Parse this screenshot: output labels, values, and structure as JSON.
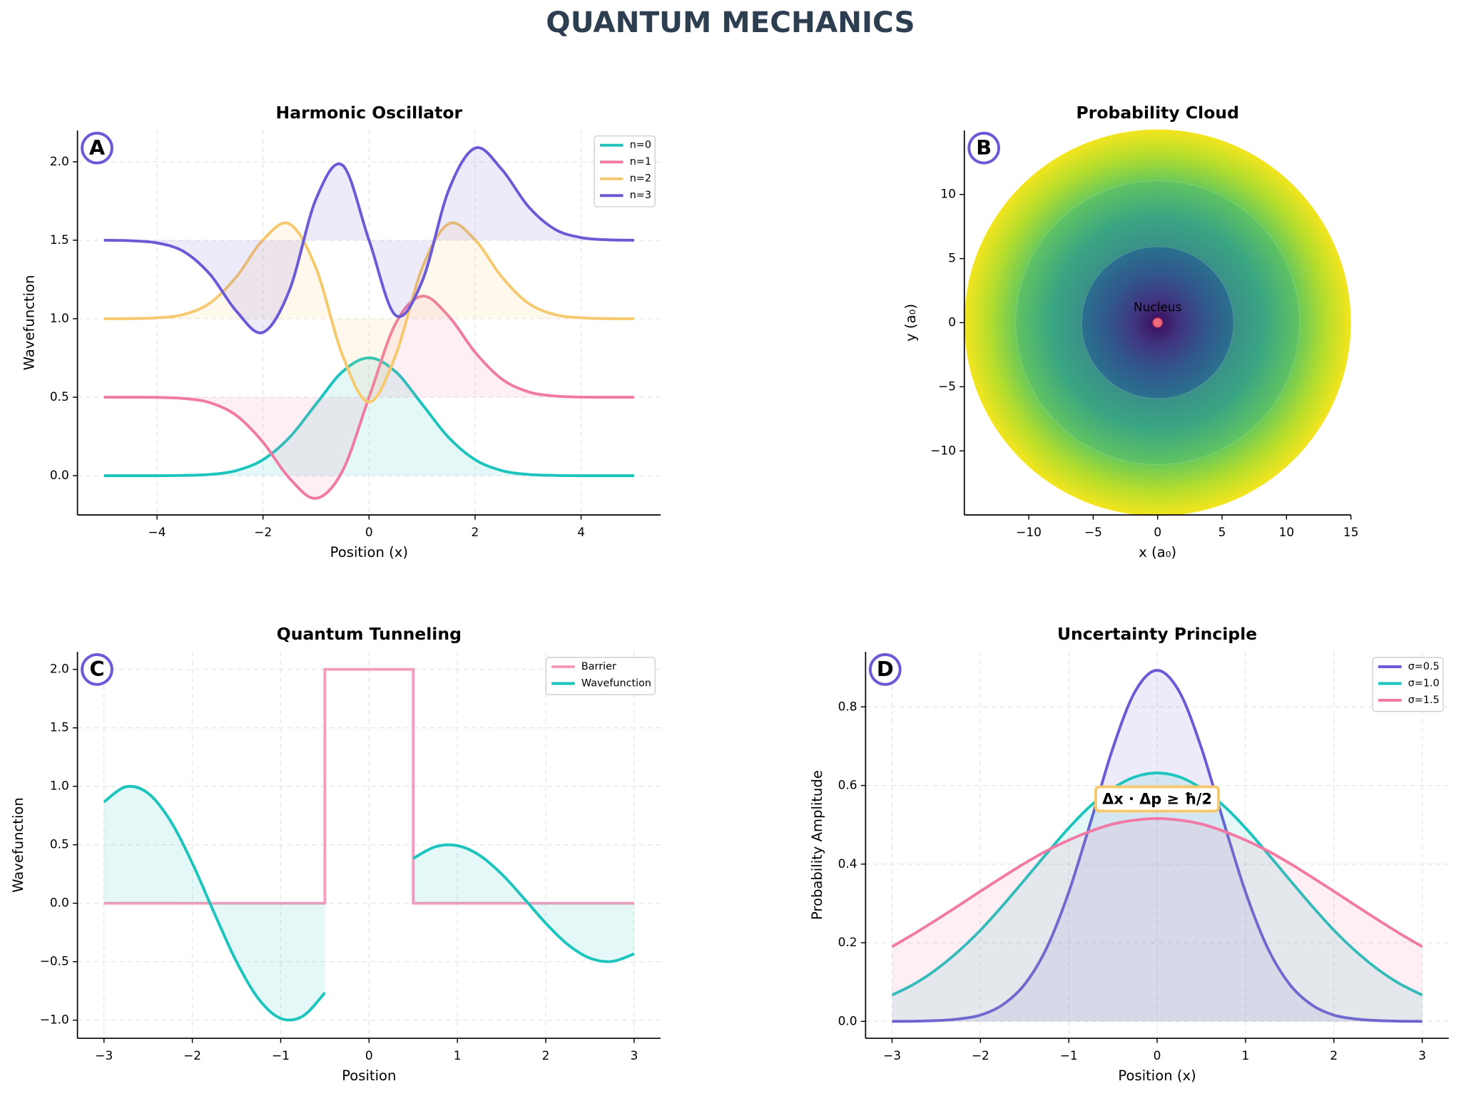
{
  "title": "QUANTUM MECHANICS",
  "chart_data": [
    {
      "type": "line",
      "title": "Harmonic Oscillator",
      "panel_label": "A",
      "xlabel": "Position (x)",
      "ylabel": "Wavefunction",
      "x": [
        -5,
        -4.5,
        -4,
        -3.5,
        -3,
        -2.5,
        -2,
        -1.5,
        -1,
        -0.5,
        0,
        0.5,
        1,
        1.5,
        2,
        2.5,
        3,
        3.5,
        4,
        4.5,
        5
      ],
      "series": [
        {
          "name": "n=0",
          "color": "#1cc4be",
          "values": [
            0,
            0,
            0,
            0.002,
            0.008,
            0.033,
            0.102,
            0.244,
            0.456,
            0.663,
            0.751,
            0.663,
            0.456,
            0.244,
            0.102,
            0.033,
            0.008,
            0.002,
            0,
            0,
            0
          ]
        },
        {
          "name": "n=1",
          "color": "#f07aa3",
          "values": [
            0.5,
            0.5,
            0.499,
            0.492,
            0.465,
            0.383,
            0.213,
            -0.017,
            -0.144,
            0.031,
            0.5,
            0.969,
            1.144,
            1.017,
            0.787,
            0.617,
            0.535,
            0.508,
            0.501,
            0.5,
            0.5
          ]
        },
        {
          "name": "n=2",
          "color": "#f7c96e",
          "values": [
            1.0,
            1.001,
            1.006,
            1.027,
            1.1,
            1.268,
            1.503,
            1.604,
            1.322,
            0.766,
            0.469,
            0.766,
            1.322,
            1.604,
            1.503,
            1.268,
            1.1,
            1.027,
            1.006,
            1.001,
            1.0
          ]
        },
        {
          "name": "n=3",
          "color": "#6a5ad6",
          "values": [
            1.5,
            1.497,
            1.483,
            1.429,
            1.283,
            1.047,
            0.913,
            1.183,
            1.763,
            1.978,
            1.5,
            1.022,
            1.237,
            1.817,
            2.087,
            1.953,
            1.717,
            1.571,
            1.517,
            1.503,
            1.5
          ]
        }
      ],
      "xlim": [
        -5.5,
        5.5
      ],
      "xticks": [
        {
          "value": -4,
          "label": "−4"
        },
        {
          "value": -2,
          "label": "−2"
        },
        0,
        2,
        4
      ],
      "ylim": [
        -0.25,
        2.2
      ],
      "yticks": [
        {
          "value": 0,
          "label": "0.0"
        },
        {
          "value": 0.5,
          "label": "0.5"
        },
        {
          "value": 1,
          "label": "1.0"
        },
        {
          "value": 1.5,
          "label": "1.5"
        },
        {
          "value": 2,
          "label": "2.0"
        }
      ],
      "grid": true,
      "legend": "upper right",
      "fill": "start"
    },
    {
      "type": "polar-density",
      "title": "Probability Cloud",
      "panel_label": "B",
      "xlabel": "x (a₀)",
      "ylabel": "y (a₀)",
      "rmax": 15,
      "colormap": "viridis",
      "nucleus": {
        "x": 0,
        "y": 0,
        "label": "Nucleus",
        "color": "#f06b7a"
      },
      "xlim": [
        -15,
        15
      ],
      "xticks": [
        {
          "value": -10,
          "label": "−10"
        },
        {
          "value": -5,
          "label": "−5"
        },
        0,
        5,
        10,
        15
      ],
      "ylim": [
        -15,
        15
      ],
      "yticks": [
        {
          "value": -10,
          "label": "−10"
        },
        {
          "value": -5,
          "label": "−5"
        },
        0,
        5,
        10
      ],
      "grid": false
    },
    {
      "type": "line",
      "title": "Quantum Tunneling",
      "panel_label": "C",
      "xlabel": "Position",
      "ylabel": "Wavefunction",
      "x": [
        -3,
        -2.75,
        -2.5,
        -2.25,
        -2,
        -1.75,
        -1.5,
        -1.25,
        -1,
        -0.75,
        -0.5,
        -0.25,
        0,
        0.25,
        0.5,
        0.75,
        1,
        1.25,
        1.5,
        1.75,
        2,
        2.25,
        2.5,
        2.75,
        3
      ],
      "series": [
        {
          "name": "Barrier",
          "color": "#f59bbd",
          "fill": false,
          "x": [
            -3,
            -0.5,
            -0.5,
            0.5,
            0.5,
            3
          ],
          "values": [
            0,
            0,
            2,
            2,
            0,
            0
          ]
        },
        {
          "name": "Wavefunction",
          "color": "#1cc4be",
          "values": [
            0.866,
            0.996,
            0.94,
            0.707,
            0.342,
            -0.087,
            -0.5,
            -0.819,
            -0.985,
            -0.966,
            -0.766,
            null,
            null,
            null,
            0.383,
            0.483,
            0.492,
            0.41,
            0.25,
            0.044,
            -0.171,
            -0.354,
            -0.47,
            -0.498,
            -0.433
          ]
        }
      ],
      "xlim": [
        -3.3,
        3.3
      ],
      "xticks": [
        {
          "value": -3,
          "label": "−3"
        },
        {
          "value": -2,
          "label": "−2"
        },
        {
          "value": -1,
          "label": "−1"
        },
        0,
        1,
        2,
        3
      ],
      "ylim": [
        -1.155,
        2.15
      ],
      "yticks": [
        {
          "value": -1,
          "label": "−1.0"
        },
        {
          "value": -0.5,
          "label": "−0.5"
        },
        {
          "value": 0,
          "label": "0.0"
        },
        {
          "value": 0.5,
          "label": "0.5"
        },
        {
          "value": 1,
          "label": "1.0"
        },
        {
          "value": 1.5,
          "label": "1.5"
        },
        {
          "value": 2,
          "label": "2.0"
        }
      ],
      "grid": true,
      "legend": "upper right",
      "fill": "zero"
    },
    {
      "type": "line",
      "title": "Uncertainty Principle",
      "panel_label": "D",
      "xlabel": "Position (x)",
      "ylabel": "Probability Amplitude",
      "annotation": "Δx · Δp ≥ ħ/2",
      "x": [
        -3,
        -2.75,
        -2.5,
        -2.25,
        -2,
        -1.75,
        -1.5,
        -1.25,
        -1,
        -0.75,
        -0.5,
        -0.25,
        0,
        0.25,
        0.5,
        0.75,
        1,
        1.25,
        1.5,
        1.75,
        2,
        2.25,
        2.5,
        2.75,
        3
      ],
      "series": [
        {
          "name": "σ=0.5",
          "color": "#6a5ad6",
          "values": [
            0.0001,
            0.0005,
            0.002,
            0.006,
            0.016,
            0.042,
            0.094,
            0.187,
            0.329,
            0.509,
            0.696,
            0.839,
            0.893,
            0.839,
            0.696,
            0.509,
            0.329,
            0.187,
            0.094,
            0.042,
            0.016,
            0.006,
            0.002,
            0.0005,
            0.0001
          ]
        },
        {
          "name": "σ=1.0",
          "color": "#1cc4be",
          "values": [
            0.067,
            0.095,
            0.132,
            0.178,
            0.232,
            0.294,
            0.36,
            0.427,
            0.492,
            0.549,
            0.593,
            0.622,
            0.632,
            0.622,
            0.593,
            0.549,
            0.492,
            0.427,
            0.36,
            0.294,
            0.232,
            0.178,
            0.132,
            0.095,
            0.067
          ]
        },
        {
          "name": "σ=1.5",
          "color": "#f07aa3",
          "values": [
            0.19,
            0.223,
            0.258,
            0.294,
            0.331,
            0.367,
            0.402,
            0.434,
            0.461,
            0.484,
            0.502,
            0.512,
            0.516,
            0.512,
            0.502,
            0.484,
            0.461,
            0.434,
            0.402,
            0.367,
            0.331,
            0.294,
            0.258,
            0.223,
            0.19
          ]
        }
      ],
      "xlim": [
        -3.3,
        3.3
      ],
      "xticks": [
        {
          "value": -3,
          "label": "−3"
        },
        {
          "value": -2,
          "label": "−2"
        },
        {
          "value": -1,
          "label": "−1"
        },
        0,
        1,
        2,
        3
      ],
      "ylim": [
        -0.043,
        0.94
      ],
      "yticks": [
        {
          "value": 0,
          "label": "0.0"
        },
        {
          "value": 0.2,
          "label": "0.2"
        },
        {
          "value": 0.4,
          "label": "0.4"
        },
        {
          "value": 0.6,
          "label": "0.6"
        },
        {
          "value": 0.8,
          "label": "0.8"
        }
      ],
      "grid": true,
      "legend": "upper right",
      "fill": "zero"
    }
  ]
}
